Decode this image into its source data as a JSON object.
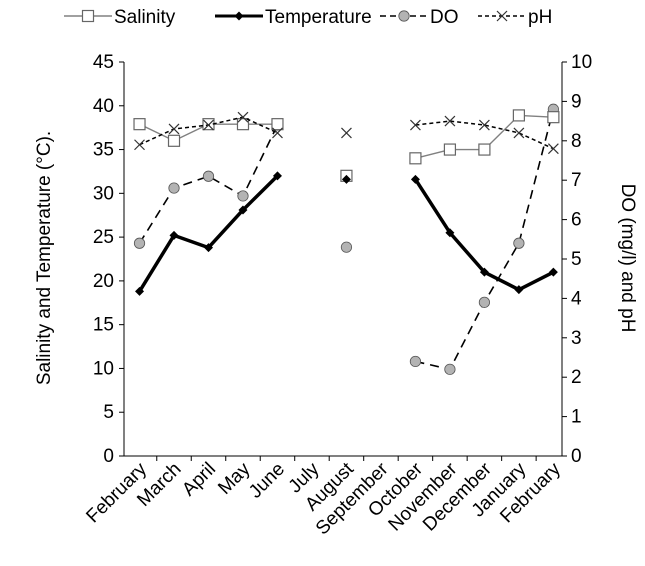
{
  "chart_data": {
    "type": "line",
    "title": "",
    "xlabel": "",
    "ylabel_left": "Salinity and Temperature (°C).",
    "ylabel_right": "DO (mg/l) and pH",
    "ylim_left": [
      0,
      45
    ],
    "ylim_right": [
      0,
      10
    ],
    "yticks_left": [
      "0",
      "5",
      "10",
      "15",
      "20",
      "25",
      "30",
      "35",
      "40",
      "45"
    ],
    "yticks_right": [
      "0",
      "1",
      "2",
      "3",
      "4",
      "5",
      "6",
      "7",
      "8",
      "9",
      "10"
    ],
    "grid": false,
    "legend_position": "top",
    "categories": [
      "February",
      "March",
      "April",
      "May",
      "June",
      "July",
      "August",
      "September",
      "October",
      "November",
      "December",
      "January",
      "February"
    ],
    "series": [
      {
        "name": "Salinity",
        "axis": "left",
        "style": "line-open-square",
        "color": "#808080",
        "values": [
          37.9,
          36.0,
          37.9,
          37.9,
          37.9,
          null,
          32.0,
          null,
          34.0,
          35.0,
          35.0,
          38.9,
          38.7
        ]
      },
      {
        "name": "Temperature",
        "axis": "left",
        "style": "thick-line-diamond",
        "color": "#000000",
        "values": [
          18.8,
          25.2,
          23.8,
          28.1,
          32.0,
          null,
          31.6,
          null,
          31.6,
          25.5,
          21.0,
          19.0,
          21.0
        ]
      },
      {
        "name": "DO",
        "axis": "right",
        "style": "dashed-line-gray-circle",
        "color": "#808080",
        "values": [
          5.4,
          6.8,
          7.1,
          6.6,
          8.4,
          null,
          5.3,
          null,
          2.4,
          2.2,
          3.9,
          5.4,
          8.8
        ]
      },
      {
        "name": "pH",
        "axis": "right",
        "style": "dashed-line-x",
        "color": "#000000",
        "values": [
          7.9,
          8.3,
          8.4,
          8.6,
          8.2,
          null,
          8.2,
          null,
          8.4,
          8.5,
          8.4,
          8.2,
          7.8
        ]
      }
    ]
  }
}
